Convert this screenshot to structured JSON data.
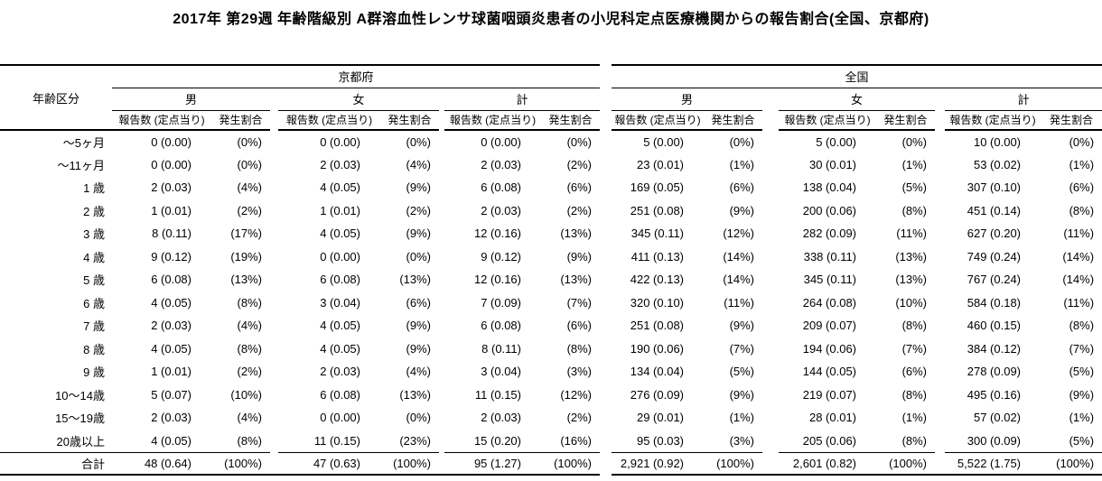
{
  "title": "2017年 第29週 年齢階級別 A群溶血性レンサ球菌咽頭炎患者の小児科定点医療機関からの報告割合(全国、京都府)",
  "table": {
    "age_header": "年齢区分",
    "regions": [
      "京都府",
      "全国"
    ],
    "sexes": [
      "男",
      "女",
      "計"
    ],
    "metrics": {
      "count": "報告数 (定点当り)",
      "rate": "発生割合"
    },
    "rows": [
      {
        "age": "〜5ヶ月",
        "values": [
          "0 (0.00)",
          "(0%)",
          "0 (0.00)",
          "(0%)",
          "0 (0.00)",
          "(0%)",
          "5 (0.00)",
          "(0%)",
          "5 (0.00)",
          "(0%)",
          "10 (0.00)",
          "(0%)"
        ]
      },
      {
        "age": "〜11ヶ月",
        "values": [
          "0 (0.00)",
          "(0%)",
          "2 (0.03)",
          "(4%)",
          "2 (0.03)",
          "(2%)",
          "23 (0.01)",
          "(1%)",
          "30 (0.01)",
          "(1%)",
          "53 (0.02)",
          "(1%)"
        ]
      },
      {
        "age": "1 歳",
        "values": [
          "2 (0.03)",
          "(4%)",
          "4 (0.05)",
          "(9%)",
          "6 (0.08)",
          "(6%)",
          "169 (0.05)",
          "(6%)",
          "138 (0.04)",
          "(5%)",
          "307 (0.10)",
          "(6%)"
        ]
      },
      {
        "age": "2 歳",
        "values": [
          "1 (0.01)",
          "(2%)",
          "1 (0.01)",
          "(2%)",
          "2 (0.03)",
          "(2%)",
          "251 (0.08)",
          "(9%)",
          "200 (0.06)",
          "(8%)",
          "451 (0.14)",
          "(8%)"
        ]
      },
      {
        "age": "3 歳",
        "values": [
          "8 (0.11)",
          "(17%)",
          "4 (0.05)",
          "(9%)",
          "12 (0.16)",
          "(13%)",
          "345 (0.11)",
          "(12%)",
          "282 (0.09)",
          "(11%)",
          "627 (0.20)",
          "(11%)"
        ]
      },
      {
        "age": "4 歳",
        "values": [
          "9 (0.12)",
          "(19%)",
          "0 (0.00)",
          "(0%)",
          "9 (0.12)",
          "(9%)",
          "411 (0.13)",
          "(14%)",
          "338 (0.11)",
          "(13%)",
          "749 (0.24)",
          "(14%)"
        ]
      },
      {
        "age": "5 歳",
        "values": [
          "6 (0.08)",
          "(13%)",
          "6 (0.08)",
          "(13%)",
          "12 (0.16)",
          "(13%)",
          "422 (0.13)",
          "(14%)",
          "345 (0.11)",
          "(13%)",
          "767 (0.24)",
          "(14%)"
        ]
      },
      {
        "age": "6 歳",
        "values": [
          "4 (0.05)",
          "(8%)",
          "3 (0.04)",
          "(6%)",
          "7 (0.09)",
          "(7%)",
          "320 (0.10)",
          "(11%)",
          "264 (0.08)",
          "(10%)",
          "584 (0.18)",
          "(11%)"
        ]
      },
      {
        "age": "7 歳",
        "values": [
          "2 (0.03)",
          "(4%)",
          "4 (0.05)",
          "(9%)",
          "6 (0.08)",
          "(6%)",
          "251 (0.08)",
          "(9%)",
          "209 (0.07)",
          "(8%)",
          "460 (0.15)",
          "(8%)"
        ]
      },
      {
        "age": "8 歳",
        "values": [
          "4 (0.05)",
          "(8%)",
          "4 (0.05)",
          "(9%)",
          "8 (0.11)",
          "(8%)",
          "190 (0.06)",
          "(7%)",
          "194 (0.06)",
          "(7%)",
          "384 (0.12)",
          "(7%)"
        ]
      },
      {
        "age": "9 歳",
        "values": [
          "1 (0.01)",
          "(2%)",
          "2 (0.03)",
          "(4%)",
          "3 (0.04)",
          "(3%)",
          "134 (0.04)",
          "(5%)",
          "144 (0.05)",
          "(6%)",
          "278 (0.09)",
          "(5%)"
        ]
      },
      {
        "age": "10〜14歳",
        "values": [
          "5 (0.07)",
          "(10%)",
          "6 (0.08)",
          "(13%)",
          "11 (0.15)",
          "(12%)",
          "276 (0.09)",
          "(9%)",
          "219 (0.07)",
          "(8%)",
          "495 (0.16)",
          "(9%)"
        ]
      },
      {
        "age": "15〜19歳",
        "values": [
          "2 (0.03)",
          "(4%)",
          "0 (0.00)",
          "(0%)",
          "2 (0.03)",
          "(2%)",
          "29 (0.01)",
          "(1%)",
          "28 (0.01)",
          "(1%)",
          "57 (0.02)",
          "(1%)"
        ]
      },
      {
        "age": "20歳以上",
        "values": [
          "4 (0.05)",
          "(8%)",
          "11 (0.15)",
          "(23%)",
          "15 (0.20)",
          "(16%)",
          "95 (0.03)",
          "(3%)",
          "205 (0.06)",
          "(8%)",
          "300 (0.09)",
          "(5%)"
        ]
      }
    ],
    "total": {
      "age": "合計",
      "values": [
        "48 (0.64)",
        "(100%)",
        "47 (0.63)",
        "(100%)",
        "95 (1.27)",
        "(100%)",
        "2,921 (0.92)",
        "(100%)",
        "2,601 (0.82)",
        "(100%)",
        "5,522 (1.75)",
        "(100%)"
      ]
    }
  }
}
